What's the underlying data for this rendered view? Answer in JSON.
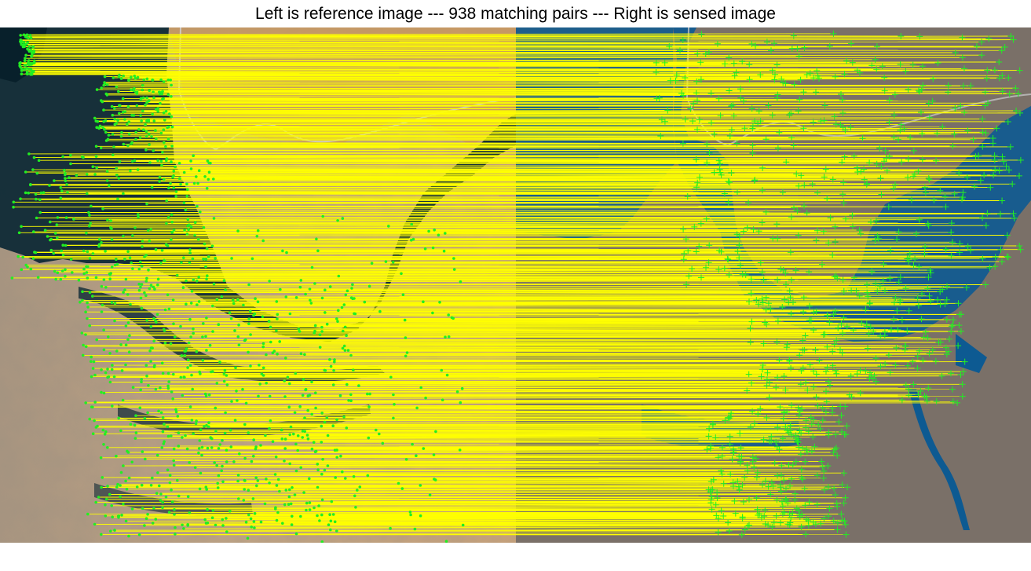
{
  "title": "Left is reference image --- 938 matching pairs --- Right is sensed image",
  "colors": {
    "background": "#ffffff",
    "match_line": "#ffff00",
    "keypoint": "#22ee22",
    "ref_water": "#0f2a36",
    "ref_land": "#b89a78",
    "ref_desert": "#c8955a",
    "sensed_water": "#0d5a92",
    "sensed_land": "#7a7068",
    "road_line": "#c8c8c8"
  }
}
